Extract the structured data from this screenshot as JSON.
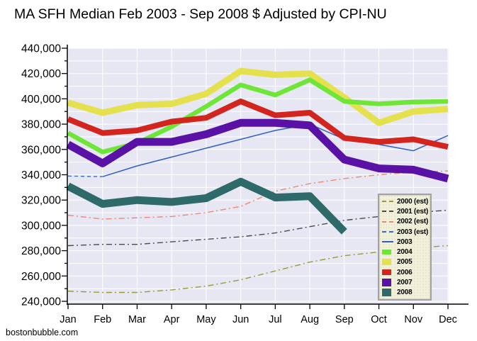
{
  "title": "MA SFH Median Feb 2003 - Sep 2008 $ Adjusted by CPI-NU",
  "watermark": "bostonbubble.com",
  "chart_data": {
    "type": "line",
    "title": "MA SFH Median Feb 2003 - Sep 2008 $ Adjusted by CPI-NU",
    "xlabel": "",
    "ylabel": "",
    "x_categories": [
      "Jan",
      "Feb",
      "Mar",
      "Apr",
      "May",
      "Jun",
      "Jul",
      "Aug",
      "Sep",
      "Oct",
      "Nov",
      "Dec"
    ],
    "y_axis": {
      "min": 240000,
      "max": 440000,
      "major_step": 20000,
      "minor_step": 10000
    },
    "y_tick_labels": [
      "440,000",
      "420,000",
      "400,000",
      "380,000",
      "360,000",
      "340,000",
      "320,000",
      "300,000",
      "280,000",
      "260,000",
      "240,000"
    ],
    "grid": true,
    "plot_bg": "#e7e7f4",
    "grid_color": "#ffffff",
    "axis_color": "#000000",
    "legend_position": "inside-right",
    "series": [
      {
        "name": "2000 (est)",
        "color": "#9a9a35",
        "style": "dashed",
        "width": 1.4,
        "values": [
          248000,
          247000,
          247000,
          249000,
          252000,
          257000,
          264000,
          271000,
          276000,
          279000,
          282000,
          284000
        ]
      },
      {
        "name": "2001 (est)",
        "color": "#4a4a4a",
        "style": "dashed",
        "width": 1.4,
        "values": [
          284000,
          285000,
          285000,
          287000,
          289000,
          291000,
          294000,
          299000,
          304000,
          307000,
          310000,
          312000
        ]
      },
      {
        "name": "2002 (est)",
        "color": "#ef8575",
        "style": "dashed",
        "width": 1.4,
        "values": [
          308000,
          305000,
          306000,
          307000,
          310000,
          315000,
          327000,
          333000,
          337000,
          340000,
          342000,
          343000
        ]
      },
      {
        "name": "2003 (est)",
        "color": "#3a6ad0",
        "style": "dashed",
        "width": 1.4,
        "values": [
          339000,
          338500,
          null,
          null,
          null,
          null,
          null,
          null,
          null,
          null,
          null,
          null
        ]
      },
      {
        "name": "2003",
        "color": "#2f5ec2",
        "style": "solid",
        "width": 1.5,
        "values": [
          null,
          338500,
          347000,
          354000,
          361000,
          368000,
          375000,
          380000,
          368000,
          364000,
          359000,
          371000
        ]
      },
      {
        "name": "2004",
        "color": "#6fe637",
        "style": "solid",
        "width": 6.5,
        "values": [
          373000,
          358000,
          365000,
          378000,
          394000,
          411000,
          403000,
          415000,
          398000,
          396000,
          397500,
          398000
        ]
      },
      {
        "name": "2005",
        "color": "#e5e04d",
        "style": "solid",
        "width": 9,
        "values": [
          397000,
          389000,
          395000,
          396000,
          404000,
          422000,
          419000,
          420000,
          401000,
          381000,
          390000,
          392000
        ]
      },
      {
        "name": "2006",
        "color": "#d2251d",
        "style": "solid",
        "width": 8,
        "values": [
          384000,
          373000,
          375000,
          382000,
          385000,
          398000,
          387000,
          389000,
          369000,
          366000,
          368000,
          362000
        ]
      },
      {
        "name": "2007",
        "color": "#5911a6",
        "style": "solid",
        "width": 11,
        "values": [
          364000,
          349000,
          366000,
          366000,
          372000,
          381000,
          381000,
          379000,
          352000,
          345000,
          344000,
          337000
        ]
      },
      {
        "name": "2008",
        "color": "#2e6a6a",
        "style": "solid",
        "width": 11,
        "values": [
          331000,
          317000,
          320000,
          318500,
          321500,
          334500,
          322000,
          323000,
          295000,
          null,
          null,
          null
        ]
      }
    ]
  }
}
